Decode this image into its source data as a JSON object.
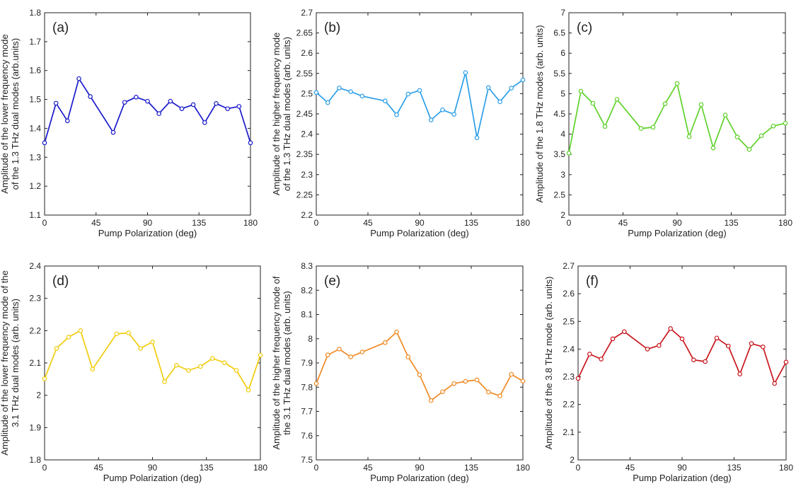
{
  "chart_data": [
    {
      "type": "line",
      "panel_label": "(a)",
      "xlabel": "Pump Polarization (deg)",
      "ylabel": [
        "Amplitude of the lower frequency mode",
        "of the 1.3 THz dual modes (arb.units)"
      ],
      "xlim": [
        0,
        180
      ],
      "ylim": [
        1.1,
        1.8
      ],
      "xticks": [
        0,
        45,
        90,
        135,
        180
      ],
      "xtick_labels": [
        "0",
        "45",
        "90",
        "135",
        "180"
      ],
      "yticks": [
        1.1,
        1.2,
        1.3,
        1.4,
        1.5,
        1.6,
        1.7,
        1.8
      ],
      "ytick_labels": [
        "1.1",
        "1.2",
        "1.3",
        "1.4",
        "1.5",
        "1.6",
        "1.7",
        "1.8"
      ],
      "color": "#1a1acc",
      "series": [
        {
          "name": "lower frequency mode 1.3 THz",
          "x": [
            0,
            10,
            20,
            30,
            40,
            60,
            70,
            80,
            90,
            100,
            110,
            120,
            130,
            140,
            150,
            160,
            170,
            180
          ],
          "y": [
            1.35,
            1.487,
            1.426,
            1.572,
            1.51,
            1.386,
            1.49,
            1.508,
            1.494,
            1.451,
            1.494,
            1.468,
            1.482,
            1.42,
            1.486,
            1.468,
            1.476,
            1.35
          ]
        }
      ]
    },
    {
      "type": "line",
      "panel_label": "(b)",
      "xlabel": "Pump Polarization (deg)",
      "ylabel": [
        "Amplitude of the higher frequency mode",
        "of the 1.3 THz dual modes (arb. units)"
      ],
      "xlim": [
        0,
        180
      ],
      "ylim": [
        2.2,
        2.7
      ],
      "xticks": [
        0,
        45,
        90,
        135,
        180
      ],
      "xtick_labels": [
        "0",
        "45",
        "90",
        "135",
        "180"
      ],
      "yticks": [
        2.2,
        2.25,
        2.3,
        2.35,
        2.4,
        2.45,
        2.5,
        2.55,
        2.6,
        2.65,
        2.7
      ],
      "ytick_labels": [
        "2.2",
        "2.25",
        "2.3",
        "2.35",
        "2.4",
        "2.45",
        "2.5",
        "2.55",
        "2.6",
        "2.65",
        "2.7"
      ],
      "color": "#2b9fe8",
      "series": [
        {
          "name": "higher frequency mode 1.3 THz",
          "x": [
            0,
            10,
            20,
            30,
            40,
            60,
            70,
            80,
            90,
            100,
            110,
            120,
            130,
            140,
            150,
            160,
            170,
            180
          ],
          "y": [
            2.503,
            2.478,
            2.514,
            2.505,
            2.494,
            2.482,
            2.448,
            2.499,
            2.508,
            2.435,
            2.46,
            2.449,
            2.552,
            2.391,
            2.515,
            2.48,
            2.514,
            2.534
          ]
        }
      ]
    },
    {
      "type": "line",
      "panel_label": "(c)",
      "xlabel": "Pump Polarization (deg)",
      "ylabel": [
        "Amplitude of the 1.8 THz modes (arb. units)"
      ],
      "xlim": [
        0,
        180
      ],
      "ylim": [
        2,
        7
      ],
      "xticks": [
        0,
        45,
        90,
        135,
        180
      ],
      "xtick_labels": [
        "0",
        "45",
        "90",
        "135",
        "180"
      ],
      "yticks": [
        2,
        2.5,
        3,
        3.5,
        4,
        4.5,
        5,
        5.5,
        6,
        6.5,
        7
      ],
      "ytick_labels": [
        "2",
        "2.5",
        "3",
        "3.5",
        "4",
        "4.5",
        "5",
        "5.5",
        "6",
        "6.5",
        "7"
      ],
      "color": "#5fd12a",
      "series": [
        {
          "name": "1.8 THz mode",
          "x": [
            0,
            10,
            20,
            30,
            40,
            60,
            70,
            80,
            90,
            100,
            110,
            120,
            130,
            140,
            150,
            160,
            170,
            180
          ],
          "y": [
            3.53,
            5.06,
            4.76,
            4.19,
            4.86,
            4.14,
            4.17,
            4.75,
            5.25,
            3.94,
            4.73,
            3.66,
            4.47,
            3.93,
            3.62,
            3.96,
            4.2,
            4.27
          ]
        }
      ]
    },
    {
      "type": "line",
      "panel_label": "(d)",
      "xlabel": "Pump Polarization (deg)",
      "ylabel": [
        "Amplitude of the lower frequency mode of the",
        "3.1 THz dual modes (arb. units)"
      ],
      "xlim": [
        0,
        180
      ],
      "ylim": [
        1.8,
        2.4
      ],
      "xticks": [
        0,
        45,
        90,
        135,
        180
      ],
      "xtick_labels": [
        "0",
        "45",
        "90",
        "135",
        "180"
      ],
      "yticks": [
        1.8,
        1.9,
        2.0,
        2.1,
        2.2,
        2.3,
        2.4
      ],
      "ytick_labels": [
        "1.8",
        "1.9",
        "2",
        "2.1",
        "2.2",
        "2.3",
        "2.4"
      ],
      "color": "#f2cc0c",
      "series": [
        {
          "name": "lower frequency mode 3.1 THz",
          "x": [
            0,
            10,
            20,
            30,
            40,
            60,
            70,
            80,
            90,
            100,
            110,
            120,
            130,
            140,
            150,
            160,
            170,
            180
          ],
          "y": [
            2.051,
            2.145,
            2.18,
            2.2,
            2.081,
            2.19,
            2.193,
            2.145,
            2.165,
            2.042,
            2.093,
            2.077,
            2.089,
            2.114,
            2.101,
            2.077,
            2.016,
            2.124
          ]
        }
      ]
    },
    {
      "type": "line",
      "panel_label": "(e)",
      "xlabel": "Pump Polarization (deg)",
      "ylabel": [
        "Amplitude of the higher frequency mode of",
        "the 3.1 THz dual modes (arb. units)"
      ],
      "xlim": [
        0,
        180
      ],
      "ylim": [
        7.5,
        8.3
      ],
      "xticks": [
        0,
        45,
        90,
        135,
        180
      ],
      "xtick_labels": [
        "0",
        "45",
        "90",
        "135",
        "180"
      ],
      "yticks": [
        7.5,
        7.6,
        7.7,
        7.8,
        7.9,
        8.0,
        8.1,
        8.2,
        8.3
      ],
      "ytick_labels": [
        "7.5",
        "7.6",
        "7.7",
        "7.8",
        "7.9",
        "8",
        "8.1",
        "8.2",
        "8.3"
      ],
      "color": "#f08a24",
      "series": [
        {
          "name": "higher frequency mode 3.1 THz",
          "x": [
            0,
            10,
            20,
            30,
            40,
            60,
            70,
            80,
            90,
            100,
            110,
            120,
            130,
            140,
            150,
            160,
            170,
            180
          ],
          "y": [
            7.815,
            7.933,
            7.957,
            7.925,
            7.945,
            7.984,
            8.028,
            7.925,
            7.851,
            7.745,
            7.781,
            7.815,
            7.824,
            7.83,
            7.78,
            7.764,
            7.853,
            7.825
          ]
        }
      ]
    },
    {
      "type": "line",
      "panel_label": "(f)",
      "xlabel": "Pump Polarization (deg)",
      "ylabel": [
        "Amplitude of the 3.8 THz mode (arb. units)"
      ],
      "xlim": [
        0,
        180
      ],
      "ylim": [
        2,
        2.7
      ],
      "xticks": [
        0,
        45,
        90,
        135,
        180
      ],
      "xtick_labels": [
        "0",
        "45",
        "90",
        "135",
        "180"
      ],
      "yticks": [
        2,
        2.1,
        2.2,
        2.3,
        2.4,
        2.5,
        2.6,
        2.7
      ],
      "ytick_labels": [
        "2",
        "2.1",
        "2.2",
        "2.3",
        "2.4",
        "2.5",
        "2.6",
        "2.7"
      ],
      "color": "#c8161d",
      "series": [
        {
          "name": "3.8 THz mode",
          "x": [
            0,
            10,
            20,
            30,
            40,
            60,
            70,
            80,
            90,
            100,
            110,
            120,
            130,
            140,
            150,
            160,
            170,
            180
          ],
          "y": [
            2.294,
            2.382,
            2.364,
            2.437,
            2.463,
            2.4,
            2.413,
            2.474,
            2.437,
            2.361,
            2.355,
            2.44,
            2.411,
            2.31,
            2.42,
            2.408,
            2.276,
            2.353
          ]
        }
      ]
    }
  ]
}
